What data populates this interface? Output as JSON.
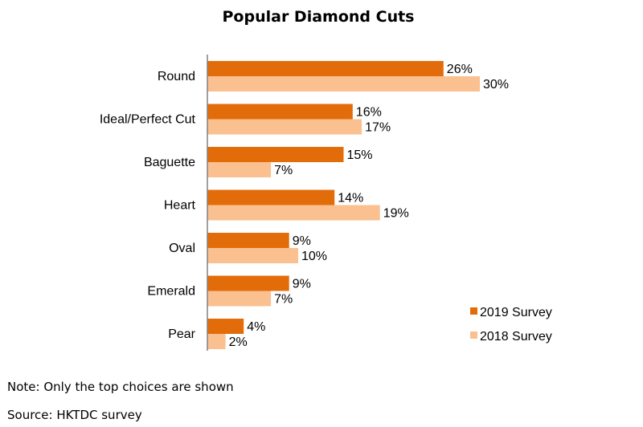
{
  "chart_data": {
    "type": "bar",
    "orientation": "horizontal",
    "title": "Popular Diamond Cuts",
    "categories": [
      "Round",
      "Ideal/Perfect Cut",
      "Baguette",
      "Heart",
      "Oval",
      "Emerald",
      "Pear"
    ],
    "series": [
      {
        "name": "2019 Survey",
        "values": [
          26,
          16,
          15,
          14,
          9,
          9,
          4
        ],
        "labels": [
          "26%",
          "16%",
          "15%",
          "14%",
          "9%",
          "9%",
          "4%"
        ],
        "color": "#E36C0A"
      },
      {
        "name": "2018 Survey",
        "values": [
          30,
          17,
          7,
          19,
          10,
          7,
          2
        ],
        "labels": [
          "30%",
          "17%",
          "7%",
          "19%",
          "10%",
          "7%",
          "2%"
        ],
        "color": "#FAC090"
      }
    ],
    "xlim": [
      0,
      35
    ],
    "grid": false,
    "legend_position": "bottom-right",
    "value_format": "percent"
  },
  "footnotes": {
    "note": "Note: Only the top choices are shown",
    "source": "Source: HKTDC survey"
  }
}
